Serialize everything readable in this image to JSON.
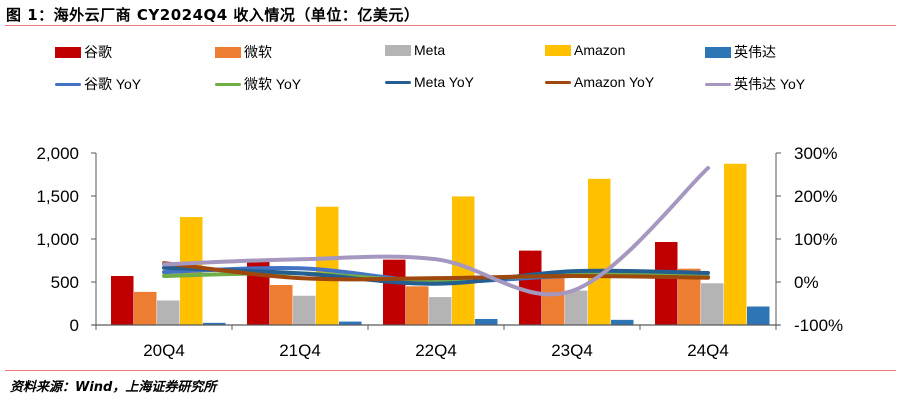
{
  "title": "图 1：海外云厂商 CY2024Q4 收入情况（单位：亿美元）",
  "source": "资料来源：Wind，上海证券研究所",
  "legend": [
    {
      "label": "谷歌",
      "type": "bar",
      "color": "#c00000"
    },
    {
      "label": "微软",
      "type": "bar",
      "color": "#ed7d31"
    },
    {
      "label": "Meta",
      "type": "bar",
      "color": "#b4b4b4"
    },
    {
      "label": "Amazon",
      "type": "bar",
      "color": "#ffc000"
    },
    {
      "label": "英伟达",
      "type": "bar",
      "color": "#2e75b6"
    },
    {
      "label": "谷歌 YoY",
      "type": "line",
      "color": "#4472c4"
    },
    {
      "label": "微软 YoY",
      "type": "line",
      "color": "#70ad47"
    },
    {
      "label": "Meta YoY",
      "type": "line",
      "color": "#255e91"
    },
    {
      "label": "Amazon YoY",
      "type": "line",
      "color": "#9e480e"
    },
    {
      "label": "英伟达 YoY",
      "type": "line",
      "color": "#a597c0"
    }
  ],
  "chart_data": {
    "type": "bar",
    "title": "海外云厂商 CY2024Q4 收入情况（单位：亿美元）",
    "categories": [
      "20Q4",
      "21Q4",
      "22Q4",
      "23Q4",
      "24Q4"
    ],
    "series": [
      {
        "name": "谷歌",
        "axis": "left",
        "type": "bar",
        "color": "#c00000",
        "values": [
          570,
          755,
          760,
          865,
          965
        ]
      },
      {
        "name": "微软",
        "axis": "left",
        "type": "bar",
        "color": "#ed7d31",
        "values": [
          385,
          465,
          450,
          560,
          655
        ]
      },
      {
        "name": "Meta",
        "axis": "left",
        "type": "bar",
        "color": "#b4b4b4",
        "values": [
          285,
          340,
          325,
          400,
          485
        ]
      },
      {
        "name": "Amazon",
        "axis": "left",
        "type": "bar",
        "color": "#ffc000",
        "values": [
          1255,
          1375,
          1495,
          1700,
          1875
        ]
      },
      {
        "name": "英伟达",
        "axis": "left",
        "type": "bar",
        "color": "#2e75b6",
        "values": [
          25,
          40,
          70,
          60,
          215
        ]
      },
      {
        "name": "谷歌 YoY",
        "axis": "right",
        "type": "line",
        "color": "#4472c4",
        "values": [
          23,
          32,
          1,
          14,
          12
        ]
      },
      {
        "name": "微软 YoY",
        "axis": "right",
        "type": "line",
        "color": "#70ad47",
        "values": [
          14,
          20,
          2,
          18,
          12
        ]
      },
      {
        "name": "Meta YoY",
        "axis": "right",
        "type": "line",
        "color": "#255e91",
        "values": [
          33,
          20,
          -4,
          25,
          21
        ]
      },
      {
        "name": "Amazon YoY",
        "axis": "right",
        "type": "line",
        "color": "#9e480e",
        "values": [
          44,
          9,
          9,
          14,
          10
        ]
      },
      {
        "name": "英伟达 YoY",
        "axis": "right",
        "type": "line",
        "color": "#a597c0",
        "values": [
          41,
          53,
          53,
          -21,
          265
        ]
      }
    ],
    "left_axis": {
      "ticks": [
        "0",
        "500",
        "1,000",
        "1,500",
        "2,000"
      ],
      "ylim": [
        0,
        2000
      ]
    },
    "right_axis": {
      "ticks": [
        "-100%",
        "0%",
        "100%",
        "200%",
        "300%"
      ],
      "ylim": [
        -100,
        300
      ]
    },
    "xlabel": "",
    "ylabel": "",
    "grid": false,
    "legend_position": "top"
  }
}
